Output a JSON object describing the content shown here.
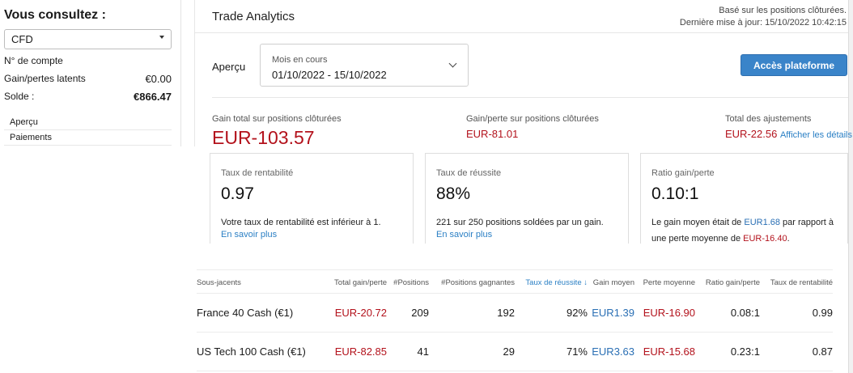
{
  "sidebar": {
    "title": "Vous consultez :",
    "account_type": "CFD",
    "account_number_label": "N° de compte",
    "unrealized_label": "Gain/pertes latents",
    "unrealized_value": "€0.00",
    "balance_label": "Solde :",
    "balance_value": "€866.47",
    "nav": [
      "Aperçu",
      "Paiements"
    ]
  },
  "header": {
    "title": "Trade Analytics",
    "meta_line1": "Basé sur les positions clôturées.",
    "meta_line2": "Dernière mise à jour: 15/10/2022 10:42:15"
  },
  "overview": {
    "label": "Aperçu",
    "period_label": "Mois en cours",
    "period_range": "01/10/2022 - 15/10/2022",
    "platform_button": "Accès plateforme"
  },
  "stats": {
    "total_label": "Gain total sur positions clôturées",
    "total_value": "EUR-103.57",
    "closed_label": "Gain/perte sur positions clôturées",
    "closed_value": "EUR-81.01",
    "adjust_label": "Total des ajustements",
    "adjust_value": "EUR-22.56",
    "adjust_link": "Afficher les détails"
  },
  "cards": {
    "profit": {
      "label": "Taux de rentabilité",
      "value": "0.97",
      "desc": "Votre taux de rentabilité est inférieur à 1.",
      "link": "En savoir plus"
    },
    "success": {
      "label": "Taux de réussite",
      "value": "88%",
      "desc": "221 sur 250 positions soldées par un gain.",
      "link": "En savoir plus"
    },
    "ratio": {
      "label": "Ratio gain/perte",
      "value": "0.10:1",
      "desc_pre": "Le gain moyen était de ",
      "desc_gain": "EUR1.68",
      "desc_mid": " par rapport à une perte moyenne de ",
      "desc_loss": "EUR-16.40",
      "desc_end": "."
    }
  },
  "table": {
    "columns": [
      "Sous-jacents",
      "Total gain/perte",
      "#Positions",
      "#Positions gagnantes",
      "Taux de réussite",
      "Gain moyen",
      "Perte moyenne",
      "Ratio gain/perte",
      "Taux de rentabilité"
    ],
    "sort_arrow": "↓",
    "rows": [
      [
        "France 40 Cash (€1)",
        "EUR-20.72",
        "209",
        "192",
        "92%",
        "EUR1.39",
        "EUR-16.90",
        "0.08:1",
        "0.99"
      ],
      [
        "US Tech 100 Cash (€1)",
        "EUR-82.85",
        "41",
        "29",
        "71%",
        "EUR3.63",
        "EUR-15.68",
        "0.23:1",
        "0.87"
      ]
    ]
  },
  "colors": {
    "negative": "#b3121c",
    "positive": "#2a6fb4",
    "accent": "#3a84c9"
  }
}
